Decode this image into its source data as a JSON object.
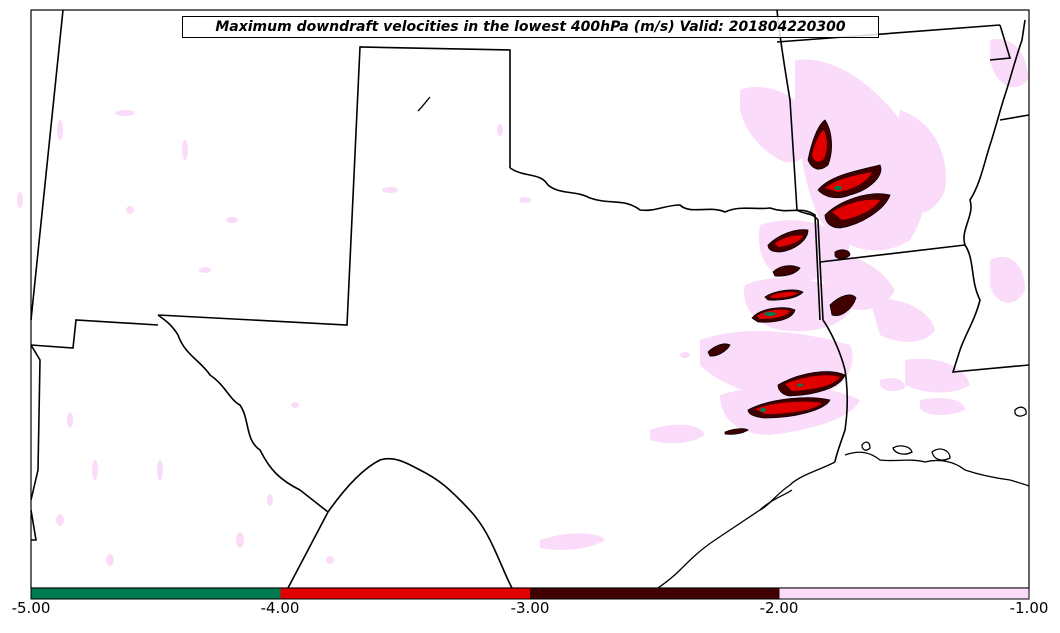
{
  "map": {
    "title": "Maximum downdraft velocities in the lowest 400hPa (m/s) Valid: 201804220300",
    "background_color": "#ffffff",
    "boundary_color": "#000000"
  },
  "colorbar": {
    "bins": [
      {
        "from": -5.0,
        "to": -4.0,
        "color": "#007a4f"
      },
      {
        "from": -4.0,
        "to": -3.0,
        "color": "#e00000"
      },
      {
        "from": -3.0,
        "to": -2.0,
        "color": "#400000"
      },
      {
        "from": -2.0,
        "to": -1.0,
        "color": "#fadcfa"
      }
    ],
    "tick_labels": [
      "-5.00",
      "-4.00",
      "-3.00",
      "-2.00",
      "-1.00"
    ]
  }
}
